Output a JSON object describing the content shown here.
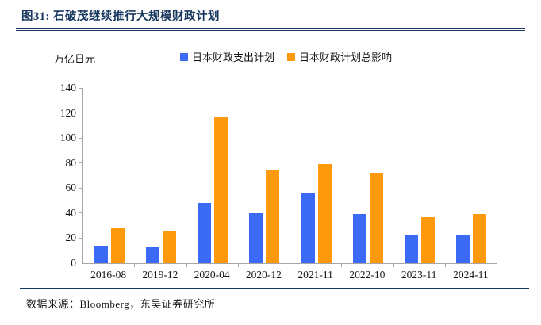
{
  "figure": {
    "title": "图31:  石破茂继续推行大规模财政计划",
    "unit_label": "万亿日元",
    "source": "数据来源：Bloomberg，东吴证券研究所"
  },
  "chart_data": {
    "type": "bar",
    "title": "图31: 石破茂继续推行大规模财政计划",
    "ylabel": "万亿日元",
    "xlabel": "",
    "categories": [
      "2016-08",
      "2019-12",
      "2020-04",
      "2020-12",
      "2021-11",
      "2022-10",
      "2023-11",
      "2024-11"
    ],
    "series": [
      {
        "name": "日本财政支出计划",
        "color": "#3B6AF6",
        "values": [
          14,
          13,
          48,
          40,
          56,
          39,
          22,
          22
        ]
      },
      {
        "name": "日本财政计划总影响",
        "color": "#FF990D",
        "values": [
          28,
          26,
          117,
          74,
          79,
          72,
          37,
          39
        ]
      }
    ],
    "ylim": [
      0,
      140
    ],
    "ytick_step": 20,
    "yticks": [
      0,
      20,
      40,
      60,
      80,
      100,
      120,
      140
    ],
    "grid": false,
    "legend_position": "top"
  },
  "colors": {
    "title_navy": "#17375E",
    "rule_navy": "#17375E",
    "axis_gray": "#A6A6A6",
    "series_blue": "#3B6AF6",
    "series_orange": "#FF990D"
  }
}
